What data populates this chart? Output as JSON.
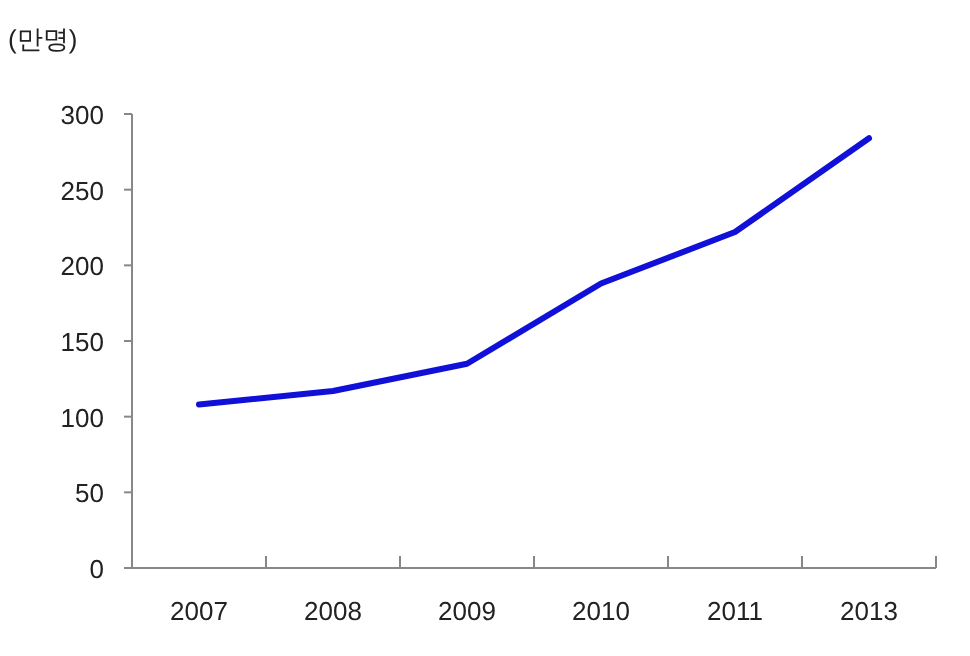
{
  "chart_data": {
    "type": "line",
    "ylabel": "(만명)",
    "categories": [
      "2007",
      "2008",
      "2009",
      "2010",
      "2011",
      "2013"
    ],
    "series": [
      {
        "color": "#1010d8",
        "values": [
          108,
          117,
          135,
          188,
          222,
          284
        ]
      }
    ],
    "ylim": [
      0,
      300
    ],
    "yticks": [
      0,
      50,
      100,
      150,
      200,
      250,
      300
    ],
    "marker": "none",
    "line_style": "solid"
  }
}
